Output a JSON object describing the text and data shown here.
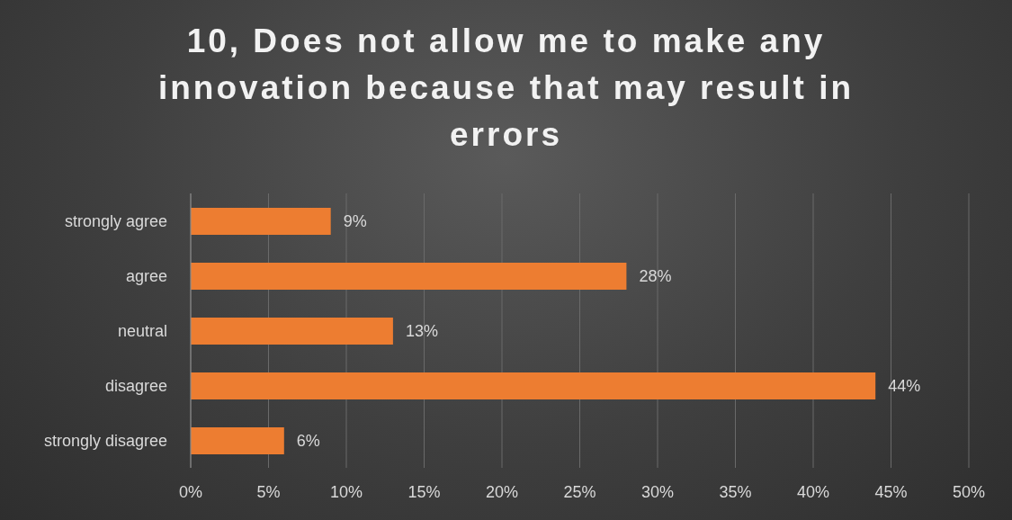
{
  "chart_data": {
    "type": "bar",
    "orientation": "horizontal",
    "title": "10, Does not allow me to make any innovation because that may result in errors",
    "categories": [
      "strongly agree",
      "agree",
      "neutral",
      "disagree",
      "strongly disagree"
    ],
    "values": [
      9,
      28,
      13,
      44,
      6
    ],
    "value_labels": [
      "9%",
      "28%",
      "13%",
      "44%",
      "6%"
    ],
    "color": "#ed7d31",
    "xlim": [
      0,
      50
    ],
    "xticks": [
      {
        "value": 0,
        "label": "0%"
      },
      {
        "value": 5,
        "label": "5%"
      },
      {
        "value": 10,
        "label": "10%"
      },
      {
        "value": 15,
        "label": "15%"
      },
      {
        "value": 20,
        "label": "20%"
      },
      {
        "value": 25,
        "label": "25%"
      },
      {
        "value": 30,
        "label": "30%"
      },
      {
        "value": 35,
        "label": "35%"
      },
      {
        "value": 40,
        "label": "40%"
      },
      {
        "value": 45,
        "label": "45%"
      },
      {
        "value": 50,
        "label": "50%"
      }
    ],
    "grid": "x",
    "legend": false
  }
}
